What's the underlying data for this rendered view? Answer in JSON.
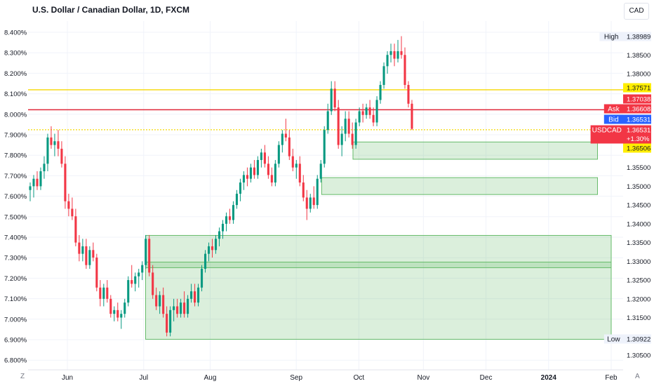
{
  "header": {
    "title": "U.S. Dollar / Canadian Dollar, 1D, FXCM",
    "currency": "CAD"
  },
  "footer": {
    "z_label": "Z",
    "a_label": "A"
  },
  "colors": {
    "up": "#089981",
    "down": "#f23645",
    "zone_fill": "#4caf50",
    "zone_border": "#66bb6a",
    "yellow": "#f5d800",
    "red_line": "#e0283a",
    "ask": "#f23645",
    "bid": "#2962ff",
    "pair": "#f23645",
    "label_yellow": "#ffee00"
  },
  "chart_data": {
    "type": "candlestick",
    "title": "U.S. Dollar / Canadian Dollar, 1D, FXCM",
    "left_axis_ticks": [
      "8.400%",
      "8.300%",
      "8.200%",
      "8.100%",
      "8.000%",
      "7.900%",
      "7.800%",
      "7.700%",
      "7.600%",
      "7.500%",
      "7.400%",
      "7.300%",
      "7.200%",
      "7.100%",
      "7.000%",
      "6.900%",
      "6.800%"
    ],
    "right_axis_ticks": [
      "1.38500",
      "1.38000",
      "1.35500",
      "1.35000",
      "1.34500",
      "1.34000",
      "1.33500",
      "1.33000",
      "1.32500",
      "1.32000",
      "1.31500",
      "1.30500"
    ],
    "right_axis_values": [
      1.385,
      1.38,
      1.355,
      1.35,
      1.345,
      1.34,
      1.335,
      1.33,
      1.325,
      1.32,
      1.315,
      1.305
    ],
    "x_tick_labels": [
      "Jun",
      "Jul",
      "Aug",
      "Sep",
      "Oct",
      "Nov",
      "Dec",
      "2024",
      "Feb"
    ],
    "x_tick_days": [
      16,
      55,
      89,
      133,
      165,
      198,
      230,
      262,
      294
    ],
    "x_start_date": "2023-05-16",
    "grid": true,
    "hlines": [
      {
        "y": 1.37571,
        "color": "yellow",
        "style": "solid"
      },
      {
        "y": 1.37038,
        "color": "red",
        "style": "solid"
      },
      {
        "y": 1.36506,
        "color": "yellow",
        "style": "dotted"
      }
    ],
    "zones": [
      {
        "from_day": 162,
        "to_day": 287,
        "y_low": 1.3572,
        "y_high": 1.3618
      },
      {
        "from_day": 146,
        "to_day": 287,
        "y_low": 1.3478,
        "y_high": 1.3523
      },
      {
        "from_day": 56,
        "to_day": 294,
        "y_low": 1.30922,
        "y_high": 1.3369
      },
      {
        "from_day": 56,
        "to_day": 294,
        "y_low": 1.3283,
        "y_high": 1.3298
      }
    ],
    "price_labels": [
      {
        "label": "High",
        "value": "1.38989",
        "style": "plain"
      },
      {
        "label": "",
        "value": "1.37571",
        "style": "yellow"
      },
      {
        "label": "",
        "value": "1.37038",
        "style": "red"
      },
      {
        "label": "Ask",
        "value": "1.36608",
        "style": "ask"
      },
      {
        "label": "Bid",
        "value": "1.36531",
        "style": "bid"
      },
      {
        "label": "USDCAD",
        "value": "1.36531",
        "sub": "+1.30%",
        "style": "pair"
      },
      {
        "label": "",
        "value": "1.36506",
        "style": "yellow"
      },
      {
        "label": "Low",
        "value": "1.30922",
        "style": "plain"
      }
    ],
    "candles": [
      [
        1.349,
        1.351,
        1.346,
        1.35
      ],
      [
        1.35,
        1.353,
        1.347,
        1.352
      ],
      [
        1.352,
        1.354,
        1.349,
        1.35
      ],
      [
        1.35,
        1.355,
        1.349,
        1.354
      ],
      [
        1.354,
        1.358,
        1.352,
        1.356
      ],
      [
        1.356,
        1.364,
        1.354,
        1.363
      ],
      [
        1.363,
        1.366,
        1.36,
        1.361
      ],
      [
        1.361,
        1.364,
        1.358,
        1.362
      ],
      [
        1.362,
        1.365,
        1.358,
        1.36
      ],
      [
        1.36,
        1.362,
        1.355,
        1.356
      ],
      [
        1.356,
        1.358,
        1.344,
        1.346
      ],
      [
        1.346,
        1.348,
        1.342,
        1.344
      ],
      [
        1.344,
        1.347,
        1.341,
        1.342
      ],
      [
        1.342,
        1.344,
        1.334,
        1.335
      ],
      [
        1.335,
        1.337,
        1.33,
        1.332
      ],
      [
        1.332,
        1.336,
        1.33,
        1.334
      ],
      [
        1.334,
        1.336,
        1.328,
        1.329
      ],
      [
        1.329,
        1.334,
        1.328,
        1.333
      ],
      [
        1.333,
        1.335,
        1.33,
        1.331
      ],
      [
        1.331,
        1.332,
        1.322,
        1.323
      ],
      [
        1.323,
        1.325,
        1.318,
        1.32
      ],
      [
        1.32,
        1.324,
        1.318,
        1.323
      ],
      [
        1.323,
        1.325,
        1.319,
        1.32
      ],
      [
        1.32,
        1.321,
        1.315,
        1.316
      ],
      [
        1.316,
        1.318,
        1.314,
        1.317
      ],
      [
        1.317,
        1.319,
        1.314,
        1.315
      ],
      [
        1.315,
        1.317,
        1.312,
        1.316
      ],
      [
        1.316,
        1.32,
        1.315,
        1.319
      ],
      [
        1.319,
        1.326,
        1.318,
        1.325
      ],
      [
        1.325,
        1.329,
        1.323,
        1.324
      ],
      [
        1.324,
        1.327,
        1.322,
        1.326
      ],
      [
        1.326,
        1.328,
        1.323,
        1.327
      ],
      [
        1.327,
        1.33,
        1.325,
        1.329
      ],
      [
        1.329,
        1.337,
        1.328,
        1.336
      ],
      [
        1.336,
        1.337,
        1.326,
        1.327
      ],
      [
        1.327,
        1.329,
        1.32,
        1.321
      ],
      [
        1.321,
        1.323,
        1.317,
        1.318
      ],
      [
        1.318,
        1.322,
        1.316,
        1.321
      ],
      [
        1.321,
        1.323,
        1.315,
        1.316
      ],
      [
        1.316,
        1.318,
        1.31,
        1.311
      ],
      [
        1.311,
        1.318,
        1.31,
        1.317
      ],
      [
        1.317,
        1.32,
        1.314,
        1.318
      ],
      [
        1.318,
        1.32,
        1.315,
        1.316
      ],
      [
        1.316,
        1.32,
        1.315,
        1.319
      ],
      [
        1.319,
        1.322,
        1.315,
        1.316
      ],
      [
        1.316,
        1.321,
        1.315,
        1.32
      ],
      [
        1.32,
        1.324,
        1.319,
        1.322
      ],
      [
        1.322,
        1.324,
        1.318,
        1.319
      ],
      [
        1.319,
        1.324,
        1.318,
        1.323
      ],
      [
        1.323,
        1.329,
        1.322,
        1.328
      ],
      [
        1.328,
        1.333,
        1.327,
        1.332
      ],
      [
        1.332,
        1.335,
        1.33,
        1.334
      ],
      [
        1.334,
        1.336,
        1.331,
        1.333
      ],
      [
        1.333,
        1.337,
        1.332,
        1.336
      ],
      [
        1.336,
        1.339,
        1.334,
        1.338
      ],
      [
        1.338,
        1.341,
        1.336,
        1.34
      ],
      [
        1.34,
        1.343,
        1.338,
        1.342
      ],
      [
        1.342,
        1.344,
        1.34,
        1.341
      ],
      [
        1.341,
        1.346,
        1.34,
        1.345
      ],
      [
        1.345,
        1.349,
        1.344,
        1.348
      ],
      [
        1.348,
        1.352,
        1.346,
        1.351
      ],
      [
        1.351,
        1.354,
        1.349,
        1.353
      ],
      [
        1.353,
        1.355,
        1.35,
        1.352
      ],
      [
        1.352,
        1.356,
        1.351,
        1.355
      ],
      [
        1.355,
        1.357,
        1.352,
        1.353
      ],
      [
        1.353,
        1.358,
        1.352,
        1.357
      ],
      [
        1.357,
        1.36,
        1.355,
        1.359
      ],
      [
        1.359,
        1.361,
        1.355,
        1.356
      ],
      [
        1.356,
        1.358,
        1.352,
        1.353
      ],
      [
        1.353,
        1.355,
        1.35,
        1.351
      ],
      [
        1.351,
        1.357,
        1.35,
        1.356
      ],
      [
        1.356,
        1.362,
        1.355,
        1.361
      ],
      [
        1.361,
        1.365,
        1.359,
        1.364
      ],
      [
        1.364,
        1.368,
        1.362,
        1.363
      ],
      [
        1.363,
        1.365,
        1.357,
        1.358
      ],
      [
        1.358,
        1.36,
        1.354,
        1.355
      ],
      [
        1.355,
        1.357,
        1.352,
        1.356
      ],
      [
        1.356,
        1.358,
        1.35,
        1.351
      ],
      [
        1.351,
        1.353,
        1.346,
        1.347
      ],
      [
        1.347,
        1.349,
        1.341,
        1.344
      ],
      [
        1.344,
        1.348,
        1.343,
        1.347
      ],
      [
        1.347,
        1.35,
        1.344,
        1.345
      ],
      [
        1.345,
        1.353,
        1.344,
        1.352
      ],
      [
        1.352,
        1.357,
        1.351,
        1.356
      ],
      [
        1.356,
        1.366,
        1.355,
        1.365
      ],
      [
        1.365,
        1.372,
        1.364,
        1.37
      ],
      [
        1.37,
        1.378,
        1.369,
        1.376
      ],
      [
        1.376,
        1.378,
        1.37,
        1.371
      ],
      [
        1.371,
        1.373,
        1.36,
        1.361
      ],
      [
        1.361,
        1.366,
        1.358,
        1.364
      ],
      [
        1.364,
        1.37,
        1.362,
        1.368
      ],
      [
        1.368,
        1.37,
        1.363,
        1.364
      ],
      [
        1.364,
        1.367,
        1.36,
        1.361
      ],
      [
        1.361,
        1.368,
        1.36,
        1.367
      ],
      [
        1.367,
        1.371,
        1.366,
        1.37
      ],
      [
        1.37,
        1.372,
        1.367,
        1.369
      ],
      [
        1.369,
        1.372,
        1.368,
        1.371
      ],
      [
        1.371,
        1.373,
        1.368,
        1.369
      ],
      [
        1.369,
        1.371,
        1.366,
        1.367
      ],
      [
        1.367,
        1.374,
        1.366,
        1.373
      ],
      [
        1.373,
        1.378,
        1.372,
        1.377
      ],
      [
        1.377,
        1.383,
        1.376,
        1.382
      ],
      [
        1.382,
        1.386,
        1.38,
        1.385
      ],
      [
        1.385,
        1.388,
        1.383,
        1.386
      ],
      [
        1.386,
        1.388,
        1.382,
        1.384
      ],
      [
        1.384,
        1.389,
        1.383,
        1.386
      ],
      [
        1.386,
        1.39,
        1.384,
        1.385
      ],
      [
        1.385,
        1.387,
        1.376,
        1.377
      ],
      [
        1.377,
        1.378,
        1.371,
        1.372
      ],
      [
        1.372,
        1.373,
        1.365,
        1.36531
      ]
    ]
  }
}
